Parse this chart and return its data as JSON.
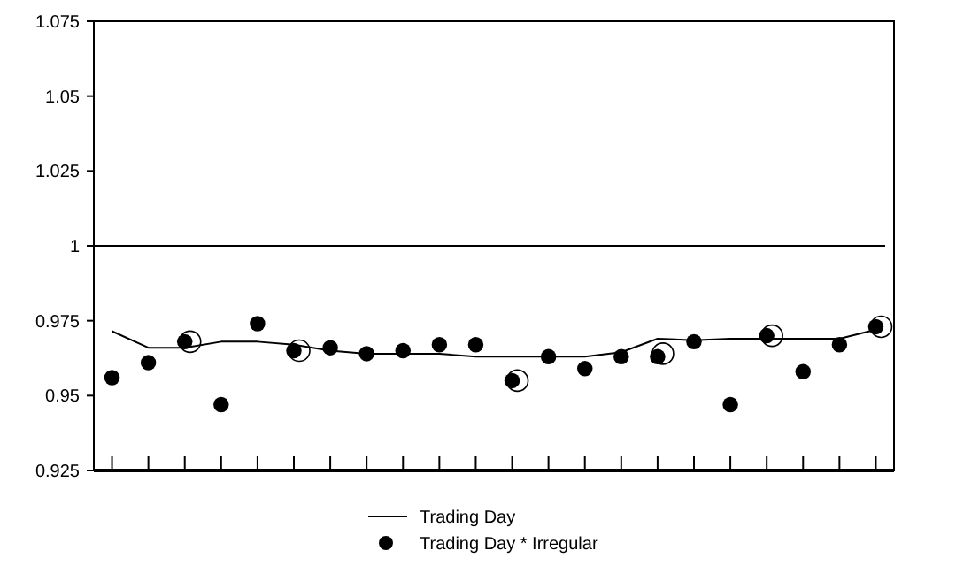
{
  "chart_data": {
    "type": "line",
    "categories": [
      null,
      null,
      null,
      null,
      null,
      null,
      null,
      null,
      null,
      null,
      null,
      null,
      null,
      null,
      null,
      null,
      null,
      null,
      null,
      null,
      null,
      null
    ],
    "series": [
      {
        "name": "Trading Day",
        "color": "#000000",
        "marker": "none",
        "line_style": "solid",
        "values": [
          0.9715,
          0.966,
          0.966,
          0.968,
          0.968,
          0.967,
          0.965,
          0.964,
          0.964,
          0.964,
          0.963,
          0.963,
          0.963,
          0.963,
          0.9645,
          0.969,
          0.9685,
          0.969,
          0.969,
          0.969,
          0.969,
          0.972
        ]
      },
      {
        "name": "Trading Day * Irregular",
        "type": "scatter",
        "color": "#000000",
        "marker": "circle",
        "values": [
          0.956,
          0.961,
          0.968,
          0.947,
          0.974,
          0.965,
          0.966,
          0.964,
          0.965,
          0.967,
          0.967,
          0.955,
          0.963,
          0.959,
          0.963,
          0.963,
          0.968,
          0.947,
          0.97,
          0.958,
          0.967,
          0.973
        ]
      },
      {
        "type": "scatter",
        "color": "#000000",
        "marker": "circle",
        "values": [
          null,
          null,
          0.968,
          null,
          null,
          0.965,
          null,
          null,
          null,
          null,
          null,
          0.955,
          null,
          null,
          null,
          0.964,
          null,
          null,
          0.97,
          null,
          null,
          0.973
        ]
      }
    ],
    "ylim": [
      0.925,
      1.075
    ],
    "yticks": [
      0.925,
      0.95,
      0.975,
      1,
      1.025,
      1.05,
      1.075
    ],
    "ref_lines": [
      {
        "axis": "y",
        "value": 1,
        "color": "#000000"
      }
    ],
    "grid": false,
    "legend": "bottom"
  }
}
